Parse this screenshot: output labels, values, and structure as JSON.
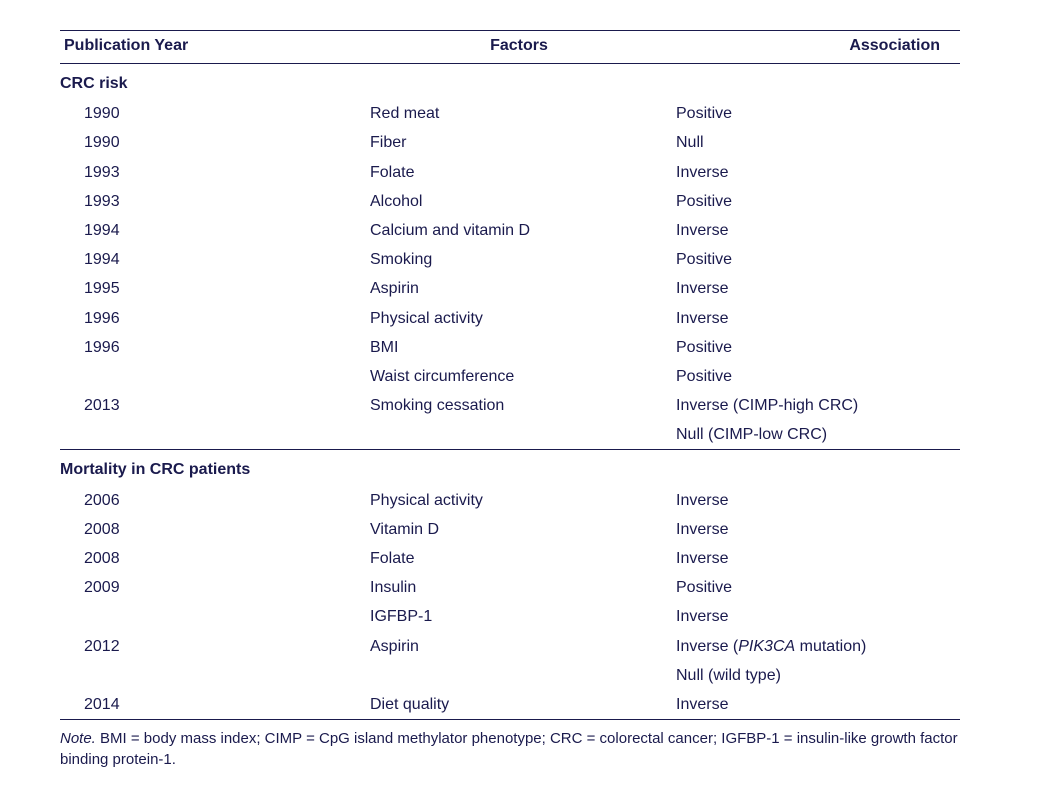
{
  "colors": {
    "text": "#1a1a4d",
    "rule": "#1a1a4d",
    "background": "#ffffff"
  },
  "typography": {
    "body_fontsize_pt": 12,
    "footnote_fontsize_pt": 11,
    "font_family": "Segoe UI / Helvetica Neue / Arial"
  },
  "table": {
    "headers": {
      "year": "Publication Year",
      "factor": "Factors",
      "assoc": "Association"
    },
    "sections": [
      {
        "title": "CRC risk",
        "rows": [
          {
            "year": "1990",
            "factor": "Red meat",
            "assoc": "Positive"
          },
          {
            "year": "1990",
            "factor": "Fiber",
            "assoc": "Null"
          },
          {
            "year": "1993",
            "factor": "Folate",
            "assoc": "Inverse"
          },
          {
            "year": "1993",
            "factor": "Alcohol",
            "assoc": "Positive"
          },
          {
            "year": "1994",
            "factor": "Calcium and vitamin D",
            "assoc": "Inverse"
          },
          {
            "year": "1994",
            "factor": "Smoking",
            "assoc": "Positive"
          },
          {
            "year": "1995",
            "factor": "Aspirin",
            "assoc": "Inverse"
          },
          {
            "year": "1996",
            "factor": "Physical activity",
            "assoc": "Inverse"
          },
          {
            "year": "1996",
            "factor": "BMI",
            "assoc": "Positive"
          },
          {
            "year": "",
            "factor": "Waist circumference",
            "assoc": "Positive"
          },
          {
            "year": "2013",
            "factor": "Smoking cessation",
            "assoc": "Inverse (CIMP-high CRC)"
          },
          {
            "year": "",
            "factor": "",
            "assoc": "Null (CIMP-low CRC)"
          }
        ]
      },
      {
        "title": "Mortality in CRC patients",
        "rows": [
          {
            "year": "2006",
            "factor": "Physical activity",
            "assoc": "Inverse"
          },
          {
            "year": "2008",
            "factor": "Vitamin D",
            "assoc": "Inverse"
          },
          {
            "year": "2008",
            "factor": "Folate",
            "assoc": "Inverse"
          },
          {
            "year": "2009",
            "factor": "Insulin",
            "assoc": "Positive"
          },
          {
            "year": "",
            "factor": "IGFBP-1",
            "assoc": "Inverse"
          },
          {
            "year": "2012",
            "factor": "Aspirin",
            "assoc_html": "Inverse (<span class=\"italic\">PIK3CA</span> mutation)"
          },
          {
            "year": "",
            "factor": "",
            "assoc": "Null (wild type)"
          },
          {
            "year": "2014",
            "factor": "Diet quality",
            "assoc": "Inverse"
          }
        ]
      }
    ]
  },
  "footnote": {
    "note_label": "Note.",
    "text": " BMI = body mass index; CIMP = CpG island methylator phenotype; CRC = colorectal cancer; IGFBP-1 = insulin-like growth factor binding protein-1."
  }
}
